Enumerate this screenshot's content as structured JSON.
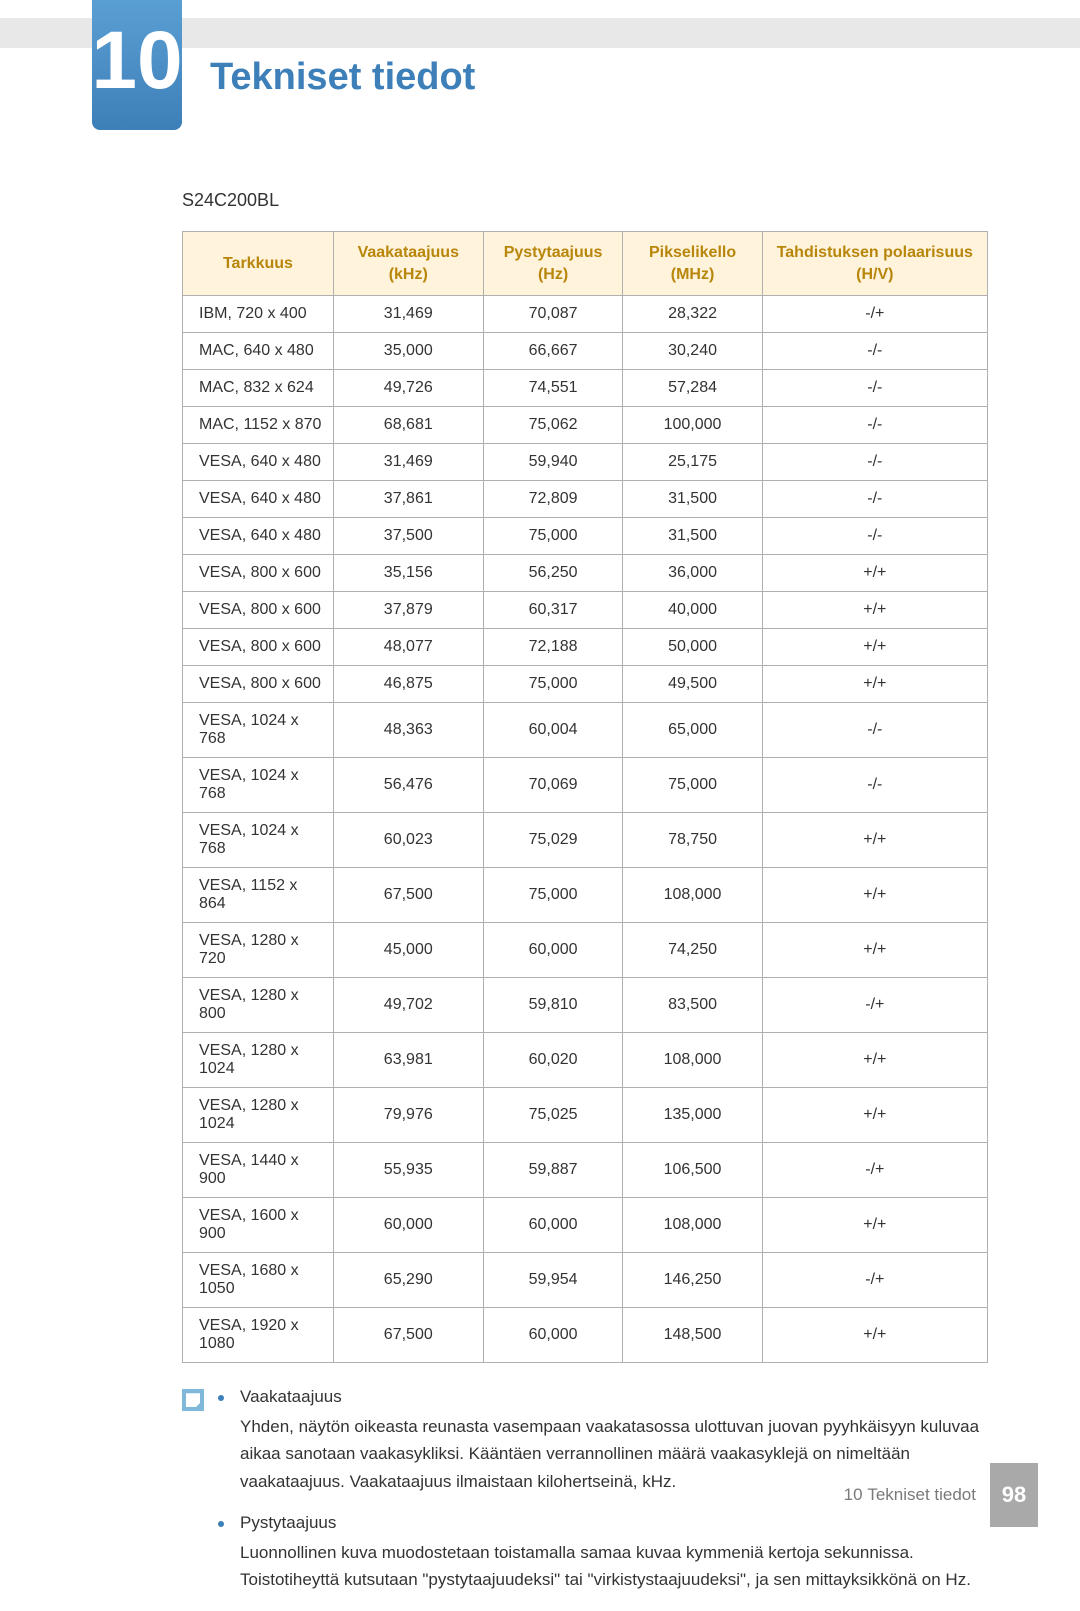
{
  "chapter_number": "10",
  "page_title": "Tekniset tiedot",
  "title_color": "#3d7fb8",
  "model": "S24C200BL",
  "table": {
    "header_bg": "#fff3db",
    "header_color": "#b8860b",
    "border_color": "#b0b0b0",
    "columns": [
      "Tarkkuus",
      "Vaakataajuus (kHz)",
      "Pystytaajuus (Hz)",
      "Pikselikello (MHz)",
      "Tahdistuksen polaarisuus (H/V)"
    ],
    "rows": [
      [
        "IBM, 720 x 400",
        "31,469",
        "70,087",
        "28,322",
        "-/+"
      ],
      [
        "MAC, 640 x 480",
        "35,000",
        "66,667",
        "30,240",
        "-/-"
      ],
      [
        "MAC, 832 x 624",
        "49,726",
        "74,551",
        "57,284",
        "-/-"
      ],
      [
        "MAC, 1152 x 870",
        "68,681",
        "75,062",
        "100,000",
        "-/-"
      ],
      [
        "VESA, 640 x 480",
        "31,469",
        "59,940",
        "25,175",
        "-/-"
      ],
      [
        "VESA, 640 x 480",
        "37,861",
        "72,809",
        "31,500",
        "-/-"
      ],
      [
        "VESA, 640 x 480",
        "37,500",
        "75,000",
        "31,500",
        "-/-"
      ],
      [
        "VESA, 800 x 600",
        "35,156",
        "56,250",
        "36,000",
        "+/+"
      ],
      [
        "VESA, 800 x 600",
        "37,879",
        "60,317",
        "40,000",
        "+/+"
      ],
      [
        "VESA, 800 x 600",
        "48,077",
        "72,188",
        "50,000",
        "+/+"
      ],
      [
        "VESA, 800 x 600",
        "46,875",
        "75,000",
        "49,500",
        "+/+"
      ],
      [
        "VESA, 1024 x 768",
        "48,363",
        "60,004",
        "65,000",
        "-/-"
      ],
      [
        "VESA, 1024 x 768",
        "56,476",
        "70,069",
        "75,000",
        "-/-"
      ],
      [
        "VESA, 1024 x 768",
        "60,023",
        "75,029",
        "78,750",
        "+/+"
      ],
      [
        "VESA, 1152 x 864",
        "67,500",
        "75,000",
        "108,000",
        "+/+"
      ],
      [
        "VESA, 1280 x 720",
        "45,000",
        "60,000",
        "74,250",
        "+/+"
      ],
      [
        "VESA, 1280 x 800",
        "49,702",
        "59,810",
        "83,500",
        "-/+"
      ],
      [
        "VESA, 1280 x 1024",
        "63,981",
        "60,020",
        "108,000",
        "+/+"
      ],
      [
        "VESA, 1280 x 1024",
        "79,976",
        "75,025",
        "135,000",
        "+/+"
      ],
      [
        "VESA, 1440 x 900",
        "55,935",
        "59,887",
        "106,500",
        "-/+"
      ],
      [
        "VESA, 1600 x 900",
        "60,000",
        "60,000",
        "108,000",
        "+/+"
      ],
      [
        "VESA, 1680 x 1050",
        "65,290",
        "59,954",
        "146,250",
        "-/+"
      ],
      [
        "VESA, 1920 x 1080",
        "67,500",
        "60,000",
        "148,500",
        "+/+"
      ]
    ]
  },
  "notes": {
    "bullet_color": "#3d7fb8",
    "items": [
      {
        "label": "Vaakataajuus",
        "text": "Yhden, näytön oikeasta reunasta vasempaan vaakatasossa ulottuvan juovan pyyhkäisyyn kuluvaa aikaa sanotaan vaakasykliksi. Kääntäen verrannollinen määrä vaakasyklejä on nimeltään vaakataajuus. Vaakataajuus ilmaistaan kilohertseinä, kHz."
      },
      {
        "label": "Pystytaajuus",
        "text": "Luonnollinen kuva muodostetaan toistamalla samaa kuvaa kymmeniä kertoja sekunnissa. Toistotiheyttä kutsutaan \"pystytaajuudeksi\" tai \"virkistystaajuudeksi\", ja sen mittayksikkönä on Hz."
      }
    ]
  },
  "footer": {
    "label_prefix": "10",
    "label_text": "Tekniset tiedot",
    "page_number": "98",
    "badge_bg": "#a9a9a9"
  }
}
